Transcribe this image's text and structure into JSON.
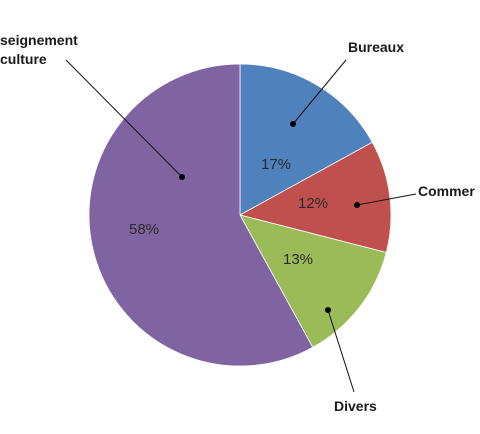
{
  "chart_data": {
    "type": "pie",
    "title": "",
    "start_angle_deg": 0,
    "direction": "clockwise",
    "slices": [
      {
        "label": "Bureaux",
        "value": 17,
        "display": "17%",
        "color": "#4f81bd"
      },
      {
        "label": "Commer",
        "value": 12,
        "display": "12%",
        "color": "#c0504d"
      },
      {
        "label": "Divers",
        "value": 13,
        "display": "13%",
        "color": "#9bbb59"
      },
      {
        "label_lines": [
          "seignement",
          "culture"
        ],
        "value": 58,
        "display": "58%",
        "color": "#8064a2"
      }
    ]
  }
}
